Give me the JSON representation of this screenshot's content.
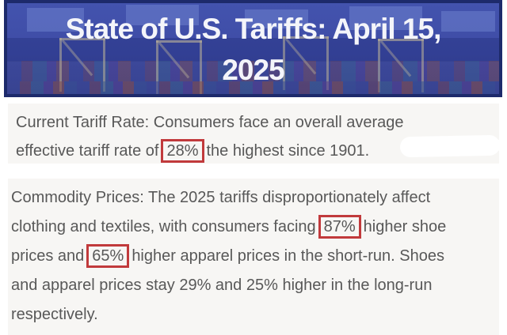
{
  "colors": {
    "banner-blue": "#3e4ca5",
    "banner-frame": "#1d2a6b",
    "banner-text": "#f4f5fa",
    "card-bg": "#f7f6f4",
    "text-gray": "#585858",
    "highlight-red": "#c13a3c"
  },
  "header": {
    "title_line1": "State of U.S. Tariffs: April 15,",
    "title_line2": "2025"
  },
  "current_tariff": {
    "line1": "Current Tariff Rate: Consumers face an overall average",
    "line2_pre": "effective tariff rate of",
    "rate_highlight": "28%",
    "line2_post": "the highest since 1901."
  },
  "commodity_prices": {
    "line1": "Commodity Prices: The 2025 tariffs disproportionately affect",
    "line2_pre": "clothing and textiles, with consumers facing",
    "shoe_highlight": "87%",
    "line2_post": "higher shoe",
    "line3_pre": "prices and",
    "apparel_highlight": "65%",
    "line3_post": "higher apparel prices in the short-run. Shoes",
    "line4": "and apparel prices stay 29% and 25% higher in the long-run",
    "line5": "respectively."
  }
}
